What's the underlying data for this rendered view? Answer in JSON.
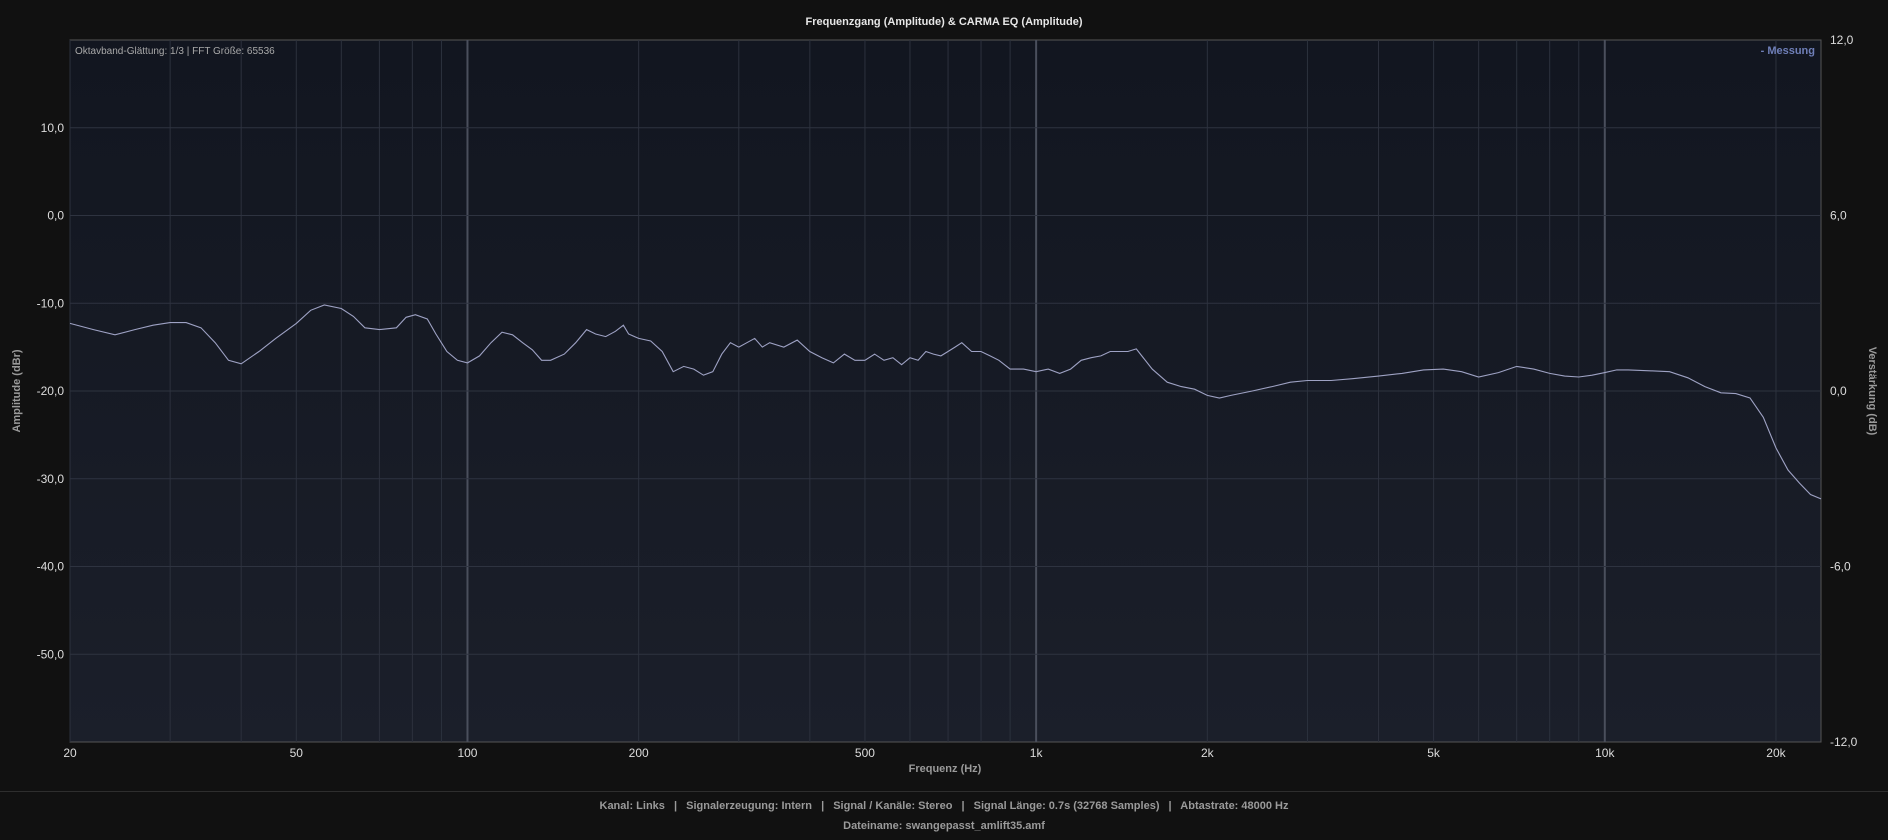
{
  "colors": {
    "background": "#111111",
    "plot_top": "#121620",
    "plot_bottom": "#1b1f2a",
    "curve": "#9ea2c4",
    "legend": "#6f7fb8",
    "grid": "#2e3340"
  },
  "chart_data": {
    "type": "line",
    "title": "Frequenzgang (Amplitude) & CARMA EQ (Amplitude)",
    "info_text": "Oktavband-Glättung: 1/3 | FFT Größe: 65536",
    "xlabel": "Frequenz (Hz)",
    "ylabel": "Amplitude (dBr)",
    "y2label": "Verstärkung (dB)",
    "x_scale": "log",
    "xlim": [
      20,
      24000
    ],
    "ylim": [
      -60,
      20
    ],
    "y2lim": [
      -12,
      12
    ],
    "x_ticks": [
      20,
      50,
      100,
      200,
      500,
      1000,
      2000,
      5000,
      10000,
      20000
    ],
    "x_tick_labels": [
      "20",
      "50",
      "100",
      "200",
      "500",
      "1k",
      "2k",
      "5k",
      "10k",
      "20k"
    ],
    "y_ticks": [
      10,
      0,
      -10,
      -20,
      -30,
      -40,
      -50
    ],
    "y_tick_labels": [
      "10,0",
      "0,0",
      "-10,0",
      "-20,0",
      "-30,0",
      "-40,0",
      "-50,0"
    ],
    "y2_ticks": [
      12,
      6,
      0,
      -6,
      -12
    ],
    "y2_tick_labels": [
      "12,0",
      "6,0",
      "0,0",
      "-6,0",
      "-12,0"
    ],
    "grid": true,
    "legend_position": "top-right",
    "series": [
      {
        "name": "Messung",
        "legend_label": "- Messung",
        "x": [
          20,
          22,
          24,
          26,
          28,
          30,
          32,
          34,
          36,
          38,
          40,
          43,
          46,
          50,
          53,
          56,
          60,
          63,
          66,
          70,
          75,
          78,
          81,
          85,
          88,
          92,
          96,
          100,
          105,
          110,
          115,
          120,
          125,
          130,
          135,
          140,
          148,
          155,
          162,
          168,
          175,
          182,
          188,
          192,
          200,
          210,
          220,
          230,
          240,
          250,
          260,
          270,
          280,
          290,
          300,
          310,
          320,
          330,
          340,
          360,
          380,
          400,
          420,
          440,
          460,
          480,
          500,
          520,
          540,
          560,
          580,
          600,
          620,
          640,
          660,
          680,
          700,
          720,
          740,
          770,
          800,
          830,
          860,
          900,
          950,
          1000,
          1050,
          1100,
          1150,
          1200,
          1250,
          1300,
          1350,
          1400,
          1450,
          1500,
          1600,
          1700,
          1800,
          1900,
          2000,
          2100,
          2200,
          2400,
          2600,
          2800,
          3000,
          3300,
          3600,
          4000,
          4400,
          4800,
          5200,
          5600,
          6000,
          6500,
          7000,
          7500,
          8000,
          8500,
          9000,
          9500,
          10000,
          10500,
          11000,
          12000,
          13000,
          14000,
          15000,
          16000,
          17000,
          18000,
          19000,
          20000,
          21000,
          22000,
          23000,
          24000
        ],
        "y": [
          -12.3,
          -13.0,
          -13.6,
          -13.0,
          -12.5,
          -12.2,
          -12.2,
          -12.8,
          -14.5,
          -16.5,
          -16.9,
          -15.5,
          -14.0,
          -12.3,
          -10.8,
          -10.2,
          -10.6,
          -11.5,
          -12.8,
          -13.0,
          -12.8,
          -11.6,
          -11.3,
          -11.8,
          -13.5,
          -15.5,
          -16.5,
          -16.8,
          -16.0,
          -14.5,
          -13.3,
          -13.6,
          -14.5,
          -15.3,
          -16.5,
          -16.5,
          -15.8,
          -14.5,
          -13.0,
          -13.5,
          -13.8,
          -13.2,
          -12.5,
          -13.5,
          -14.0,
          -14.3,
          -15.5,
          -17.8,
          -17.2,
          -17.5,
          -18.2,
          -17.8,
          -15.8,
          -14.5,
          -15.0,
          -14.5,
          -14.0,
          -15.0,
          -14.5,
          -15.0,
          -14.2,
          -15.5,
          -16.2,
          -16.8,
          -15.8,
          -16.5,
          -16.5,
          -15.8,
          -16.5,
          -16.2,
          -17.0,
          -16.2,
          -16.5,
          -15.5,
          -15.8,
          -16.0,
          -15.5,
          -15.0,
          -14.5,
          -15.5,
          -15.5,
          -16.0,
          -16.5,
          -17.5,
          -17.5,
          -17.8,
          -17.5,
          -18.0,
          -17.5,
          -16.5,
          -16.2,
          -16.0,
          -15.5,
          -15.5,
          -15.5,
          -15.2,
          -17.5,
          -19.0,
          -19.5,
          -19.8,
          -20.5,
          -20.8,
          -20.5,
          -20.0,
          -19.5,
          -19.0,
          -18.8,
          -18.8,
          -18.6,
          -18.3,
          -18.0,
          -17.6,
          -17.5,
          -17.8,
          -18.4,
          -17.9,
          -17.2,
          -17.5,
          -18.0,
          -18.3,
          -18.4,
          -18.2,
          -17.9,
          -17.6,
          -17.6,
          -17.7,
          -17.8,
          -18.5,
          -19.5,
          -20.2,
          -20.3,
          -20.8,
          -23.0,
          -26.5,
          -29.0,
          -30.5,
          -31.8,
          -32.3
        ]
      }
    ]
  },
  "footer": {
    "kanal": "Kanal: Links",
    "signalerzeugung": "Signalerzeugung: Intern",
    "signal_kanaele": "Signal / Kanäle: Stereo",
    "signal_laenge": "Signal Länge: 0.7s (32768 Samples)",
    "abtastrate": "Abtastrate: 48000 Hz",
    "separator": "|",
    "dateiname": "Dateiname: swangepasst_amlift35.amf"
  }
}
